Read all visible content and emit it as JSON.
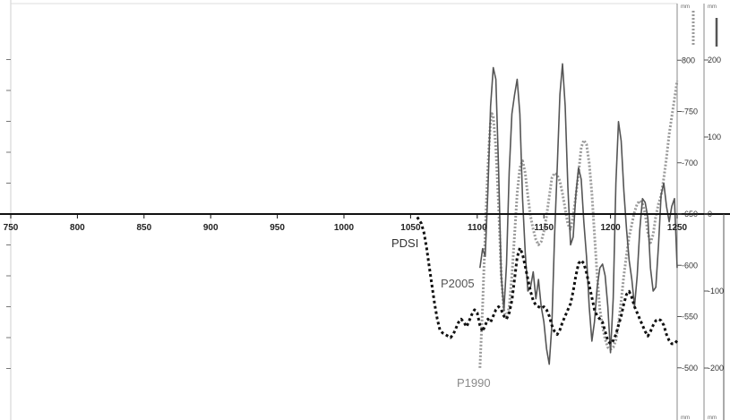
{
  "chart_data": {
    "type": "line",
    "x_axis": {
      "range": [
        750,
        1250
      ],
      "ticks": [
        "750",
        "800",
        "850",
        "900",
        "950",
        "1000",
        "1050",
        "1100",
        "1150",
        "1200",
        "1250"
      ]
    },
    "axes": [
      {
        "id": "left",
        "side": "left",
        "range": [
          -6,
          6
        ],
        "ticks": []
      },
      {
        "id": "p1990",
        "side": "right",
        "unit": "mm",
        "range": [
          450,
          850
        ],
        "ticks": [
          {
            "value": 800,
            "label": "800"
          },
          {
            "value": 750,
            "label": "-750"
          },
          {
            "value": 700,
            "label": "-700"
          },
          {
            "value": 650,
            "label": "-650"
          },
          {
            "value": 600,
            "label": "-600"
          },
          {
            "value": 550,
            "label": "-550"
          },
          {
            "value": 500,
            "label": "-500"
          }
        ]
      },
      {
        "id": "p2005",
        "side": "right",
        "unit": "mm",
        "range": [
          -250,
          250
        ],
        "ticks": [
          {
            "value": 200,
            "label": "200"
          },
          {
            "value": 100,
            "label": "100"
          },
          {
            "value": 0,
            "label": "0"
          },
          {
            "value": -100,
            "label": "-100"
          },
          {
            "value": -200,
            "label": "-200"
          }
        ]
      }
    ],
    "series": [
      {
        "name": "PDSI",
        "axis": "left",
        "style": "dotted",
        "color": "#111111",
        "x": [
          1055,
          1058,
          1060,
          1062,
          1064,
          1066,
          1068,
          1070,
          1072,
          1074,
          1076,
          1078,
          1080,
          1082,
          1084,
          1086,
          1088,
          1090,
          1092,
          1094,
          1096,
          1098,
          1100,
          1102,
          1104,
          1106,
          1108,
          1110,
          1112,
          1114,
          1116,
          1118,
          1120,
          1122,
          1124,
          1126,
          1128,
          1130,
          1132,
          1134,
          1136,
          1138,
          1140,
          1142,
          1144,
          1146,
          1148,
          1150,
          1152,
          1154,
          1156,
          1158,
          1160,
          1162,
          1164,
          1166,
          1168,
          1170,
          1172,
          1174,
          1176,
          1178,
          1180,
          1182,
          1184,
          1186,
          1188,
          1190,
          1192,
          1194,
          1196,
          1198,
          1200,
          1202,
          1204,
          1206,
          1208,
          1210,
          1212,
          1214,
          1216,
          1218,
          1220,
          1222,
          1224,
          1226,
          1228,
          1230,
          1232,
          1234,
          1236,
          1238,
          1240,
          1242,
          1244,
          1246,
          1248,
          1250
        ],
        "values": [
          -0.1,
          -0.3,
          -0.6,
          -1.1,
          -1.7,
          -2.3,
          -2.9,
          -3.4,
          -3.75,
          -3.85,
          -3.9,
          -3.95,
          -4.0,
          -3.9,
          -3.7,
          -3.5,
          -3.4,
          -3.5,
          -3.65,
          -3.45,
          -3.25,
          -3.1,
          -3.2,
          -3.6,
          -3.8,
          -3.6,
          -3.4,
          -3.5,
          -3.3,
          -3.1,
          -3.0,
          -3.1,
          -3.3,
          -3.4,
          -3.2,
          -2.8,
          -2.1,
          -1.4,
          -1.1,
          -1.3,
          -1.7,
          -2.1,
          -2.5,
          -2.8,
          -2.95,
          -3.0,
          -3.05,
          -3.0,
          -3.1,
          -3.3,
          -3.6,
          -3.8,
          -3.9,
          -3.75,
          -3.5,
          -3.3,
          -3.1,
          -2.9,
          -2.5,
          -2.0,
          -1.6,
          -1.5,
          -1.6,
          -1.9,
          -2.3,
          -2.7,
          -3.1,
          -3.3,
          -3.4,
          -3.5,
          -3.8,
          -4.1,
          -4.2,
          -4.1,
          -3.9,
          -3.6,
          -3.3,
          -2.9,
          -2.6,
          -2.5,
          -2.7,
          -3.0,
          -3.2,
          -3.4,
          -3.6,
          -3.8,
          -3.95,
          -3.8,
          -3.6,
          -3.45,
          -3.4,
          -3.45,
          -3.6,
          -3.9,
          -4.1,
          -4.2,
          -4.2,
          -4.1
        ]
      },
      {
        "name": "P1990",
        "axis": "p1990",
        "style": "dotted",
        "color": "#9a9a9a",
        "x": [
          1102,
          1103,
          1104,
          1105,
          1106,
          1107,
          1108,
          1109,
          1110,
          1111,
          1112,
          1114,
          1116,
          1118,
          1120,
          1122,
          1124,
          1126,
          1128,
          1130,
          1132,
          1134,
          1136,
          1138,
          1140,
          1142,
          1144,
          1146,
          1148,
          1150,
          1152,
          1154,
          1156,
          1158,
          1160,
          1162,
          1164,
          1166,
          1168,
          1170,
          1172,
          1174,
          1176,
          1178,
          1180,
          1182,
          1184,
          1186,
          1188,
          1190,
          1192,
          1194,
          1196,
          1198,
          1200,
          1202,
          1204,
          1206,
          1208,
          1210,
          1212,
          1214,
          1216,
          1218,
          1220,
          1222,
          1224,
          1226,
          1228,
          1230,
          1232,
          1234,
          1236,
          1238,
          1240,
          1242,
          1244,
          1246,
          1248,
          1250
        ],
        "values": [
          500,
          530,
          560,
          595,
          630,
          665,
          695,
          720,
          740,
          748,
          745,
          715,
          660,
          590,
          555,
          548,
          560,
          590,
          630,
          670,
          695,
          702,
          690,
          668,
          648,
          635,
          625,
          620,
          623,
          633,
          648,
          667,
          685,
          690,
          688,
          682,
          670,
          655,
          640,
          635,
          648,
          668,
          690,
          715,
          722,
          718,
          700,
          670,
          630,
          590,
          557,
          540,
          528,
          520,
          518,
          520,
          527,
          543,
          565,
          590,
          610,
          628,
          640,
          652,
          660,
          663,
          660,
          650,
          632,
          622,
          630,
          648,
          660,
          668,
          685,
          705,
          728,
          745,
          762,
          780
        ]
      },
      {
        "name": "P2005",
        "axis": "p2005",
        "style": "solid",
        "color": "#555555",
        "x": [
          1102,
          1104,
          1106,
          1108,
          1110,
          1112,
          1114,
          1116,
          1118,
          1120,
          1122,
          1124,
          1126,
          1128,
          1130,
          1132,
          1134,
          1136,
          1138,
          1140,
          1142,
          1144,
          1146,
          1148,
          1150,
          1152,
          1154,
          1156,
          1158,
          1160,
          1162,
          1164,
          1166,
          1168,
          1170,
          1172,
          1174,
          1176,
          1178,
          1180,
          1182,
          1184,
          1186,
          1188,
          1190,
          1192,
          1194,
          1196,
          1198,
          1200,
          1202,
          1204,
          1206,
          1208,
          1210,
          1212,
          1214,
          1216,
          1218,
          1220,
          1222,
          1224,
          1226,
          1228,
          1230,
          1232,
          1234,
          1236,
          1238,
          1240,
          1242,
          1244,
          1246,
          1248,
          1250
        ],
        "values": [
          -70,
          -45,
          -55,
          30,
          140,
          190,
          175,
          60,
          -80,
          -125,
          -65,
          55,
          130,
          155,
          175,
          130,
          20,
          -50,
          -100,
          -95,
          -75,
          -110,
          -85,
          -120,
          -140,
          -175,
          -195,
          -145,
          -30,
          60,
          155,
          195,
          140,
          35,
          -40,
          -30,
          25,
          60,
          45,
          -10,
          -55,
          -120,
          -165,
          -140,
          -95,
          -70,
          -65,
          -80,
          -120,
          -180,
          -110,
          40,
          120,
          95,
          30,
          -20,
          -60,
          -85,
          -120,
          -80,
          -20,
          20,
          15,
          -5,
          -70,
          -100,
          -95,
          -40,
          25,
          40,
          10,
          -10,
          10,
          20,
          -70
        ]
      }
    ],
    "labels": [
      {
        "text": "PDSI",
        "color": "#333333"
      },
      {
        "text": "P2005",
        "color": "#555555"
      },
      {
        "text": "P1990",
        "color": "#8a8a8a"
      }
    ]
  }
}
